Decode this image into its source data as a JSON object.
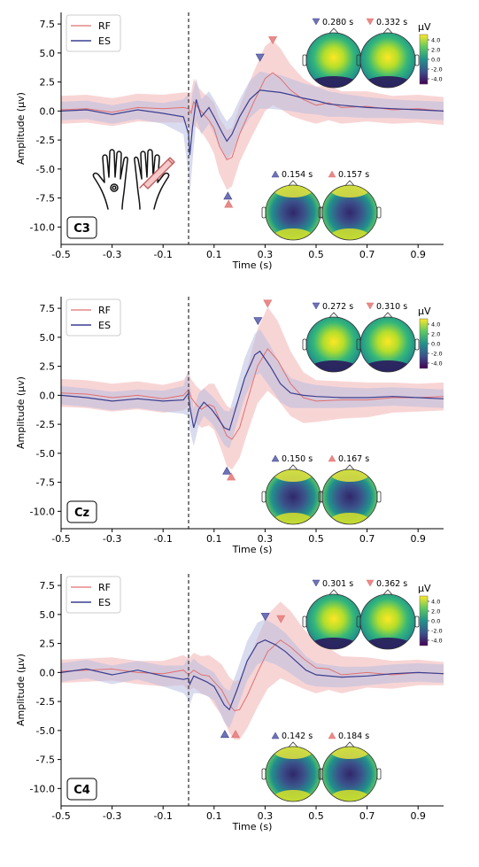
{
  "colors": {
    "rf": "#e07070",
    "es": "#3a3f8f",
    "rf_band": "#f2b3b3",
    "es_band": "#b9bde0",
    "onset_line": "#555555"
  },
  "legend_labels": {
    "rf": "RF",
    "es": "ES"
  },
  "colorbar": {
    "unit": "µV",
    "ticks": [
      "4.0",
      "2.0",
      "0.0",
      "-2.0",
      "-4.0"
    ],
    "colormap": "viridis"
  },
  "chart_data": [
    {
      "type": "line",
      "panel_label": "C3",
      "xlabel": "Time (s)",
      "ylabel": "Amplitude (µv)",
      "xlim": [
        -0.5,
        1.0
      ],
      "ylim": [
        -11.5,
        8.5
      ],
      "xticks": [
        -0.5,
        -0.3,
        -0.1,
        0.1,
        0.3,
        0.5,
        0.7,
        0.9
      ],
      "yticks": [
        7.5,
        5.0,
        2.5,
        0.0,
        -2.5,
        -5.0,
        -7.5,
        -10.0
      ],
      "onset_line_x": 0.0,
      "legend_position": "top-left",
      "series": [
        {
          "name": "RF",
          "color": "#e07070",
          "x": [
            -0.5,
            -0.4,
            -0.3,
            -0.2,
            -0.1,
            -0.02,
            0,
            0.01,
            0.02,
            0.04,
            0.06,
            0.08,
            0.1,
            0.12,
            0.15,
            0.17,
            0.2,
            0.25,
            0.3,
            0.33,
            0.36,
            0.4,
            0.45,
            0.5,
            0.55,
            0.6,
            0.7,
            0.8,
            0.9,
            1.0
          ],
          "values": [
            0.1,
            0.2,
            -0.1,
            0.3,
            0.2,
            0.3,
            0.2,
            -0.2,
            0.8,
            0.2,
            -0.3,
            -0.8,
            -1.5,
            -3.0,
            -4.2,
            -4.0,
            -2.0,
            0.5,
            2.8,
            3.3,
            2.8,
            1.8,
            1.0,
            0.5,
            0.7,
            0.3,
            0.4,
            0.1,
            0.2,
            0.0
          ],
          "band": [
            1.2,
            1.2,
            1.2,
            1.2,
            1.2,
            1.3,
            1.4,
            1.8,
            2.0,
            1.8,
            1.8,
            2.0,
            2.2,
            2.4,
            2.6,
            2.5,
            2.4,
            2.6,
            2.8,
            2.8,
            2.6,
            2.2,
            1.8,
            1.6,
            1.5,
            1.4,
            1.3,
            1.2,
            1.2,
            1.2
          ]
        },
        {
          "name": "ES",
          "color": "#3a3f8f",
          "x": [
            -0.5,
            -0.4,
            -0.3,
            -0.2,
            -0.1,
            -0.02,
            0,
            0.005,
            0.015,
            0.03,
            0.05,
            0.08,
            0.1,
            0.13,
            0.15,
            0.17,
            0.2,
            0.24,
            0.28,
            0.32,
            0.36,
            0.4,
            0.45,
            0.5,
            0.55,
            0.6,
            0.7,
            0.8,
            0.9,
            1.0
          ],
          "values": [
            0.0,
            0.1,
            -0.3,
            0.1,
            -0.2,
            -0.5,
            -2.0,
            -3.8,
            -1.5,
            1.0,
            -0.5,
            0.3,
            -0.5,
            -1.8,
            -2.6,
            -2.0,
            -0.5,
            1.0,
            1.8,
            1.7,
            1.6,
            1.4,
            1.1,
            0.9,
            0.6,
            0.5,
            0.3,
            0.2,
            0.1,
            0.0
          ],
          "band": [
            0.8,
            0.8,
            0.8,
            0.8,
            0.9,
            1.5,
            3.5,
            3.5,
            3.0,
            1.8,
            1.5,
            1.4,
            1.5,
            1.6,
            1.7,
            1.6,
            1.5,
            1.6,
            1.6,
            1.5,
            1.5,
            1.4,
            1.3,
            1.2,
            1.1,
            1.0,
            0.9,
            0.8,
            0.8,
            0.8
          ]
        }
      ],
      "peak_markers": [
        {
          "series": "ES",
          "x": 0.28,
          "y": 4.6,
          "direction": "down"
        },
        {
          "series": "RF",
          "x": 0.33,
          "y": 6.1,
          "direction": "down"
        },
        {
          "series": "ES",
          "x": 0.154,
          "y": -7.3,
          "direction": "up"
        },
        {
          "series": "RF",
          "x": 0.157,
          "y": -8.0,
          "direction": "up"
        }
      ],
      "topomaps": [
        {
          "label": "0.280 s",
          "series": "ES",
          "position": "upper",
          "marker": "down"
        },
        {
          "label": "0.332 s",
          "series": "RF",
          "position": "upper",
          "marker": "down"
        },
        {
          "label": "0.154 s",
          "series": "ES",
          "position": "lower",
          "marker": "up"
        },
        {
          "label": "0.157 s",
          "series": "RF",
          "position": "lower",
          "marker": "up"
        }
      ],
      "has_colorbar": true,
      "has_hand_illustration": true
    },
    {
      "type": "line",
      "panel_label": "Cz",
      "xlabel": "Time (s)",
      "ylabel": "Amplitude (µv)",
      "xlim": [
        -0.5,
        1.0
      ],
      "ylim": [
        -11.5,
        8.5
      ],
      "xticks": [
        -0.5,
        -0.3,
        -0.1,
        0.1,
        0.3,
        0.5,
        0.7,
        0.9
      ],
      "yticks": [
        7.5,
        5.0,
        2.5,
        0.0,
        -2.5,
        -5.0,
        -7.5,
        -10.0
      ],
      "onset_line_x": 0.0,
      "legend_position": "top-left",
      "series": [
        {
          "name": "RF",
          "color": "#e07070",
          "x": [
            -0.5,
            -0.4,
            -0.3,
            -0.2,
            -0.1,
            -0.02,
            0,
            0.01,
            0.03,
            0.05,
            0.08,
            0.1,
            0.13,
            0.15,
            0.17,
            0.2,
            0.23,
            0.27,
            0.31,
            0.35,
            0.4,
            0.45,
            0.5,
            0.6,
            0.7,
            0.8,
            0.9,
            1.0
          ],
          "values": [
            0.2,
            0.1,
            -0.2,
            0.0,
            -0.3,
            0.0,
            0.5,
            -0.2,
            -0.8,
            -1.2,
            -0.8,
            -1.0,
            -2.5,
            -3.5,
            -3.8,
            -2.8,
            -0.5,
            2.5,
            4.0,
            3.0,
            1.0,
            -0.2,
            -0.5,
            -0.4,
            -0.4,
            -0.2,
            -0.2,
            -0.1
          ],
          "band": [
            1.2,
            1.2,
            1.2,
            1.2,
            1.2,
            1.3,
            1.5,
            1.6,
            1.6,
            1.6,
            1.8,
            2.0,
            2.3,
            2.6,
            2.6,
            2.6,
            2.8,
            3.2,
            3.6,
            3.4,
            2.8,
            2.2,
            1.8,
            1.6,
            1.5,
            1.3,
            1.2,
            1.2
          ]
        },
        {
          "name": "ES",
          "color": "#3a3f8f",
          "x": [
            -0.5,
            -0.4,
            -0.3,
            -0.2,
            -0.1,
            -0.02,
            0,
            0.005,
            0.02,
            0.04,
            0.06,
            0.09,
            0.11,
            0.14,
            0.16,
            0.18,
            0.22,
            0.26,
            0.28,
            0.32,
            0.36,
            0.4,
            0.45,
            0.5,
            0.6,
            0.7,
            0.8,
            0.9,
            1.0
          ],
          "values": [
            0.0,
            -0.2,
            -0.5,
            -0.3,
            -0.5,
            -0.4,
            0.2,
            -1.0,
            -2.8,
            -1.2,
            -0.6,
            -1.2,
            -1.8,
            -2.8,
            -3.0,
            -1.5,
            1.5,
            3.5,
            3.8,
            2.5,
            1.0,
            0.2,
            0.0,
            -0.1,
            -0.2,
            -0.2,
            -0.1,
            -0.2,
            -0.3
          ],
          "band": [
            0.8,
            0.8,
            0.8,
            0.8,
            0.9,
            1.2,
            2.0,
            2.0,
            1.6,
            1.4,
            1.2,
            1.2,
            1.3,
            1.5,
            1.6,
            1.6,
            1.7,
            1.8,
            1.9,
            1.8,
            1.6,
            1.3,
            1.1,
            1.0,
            0.9,
            0.8,
            0.8,
            0.8,
            0.8
          ]
        }
      ],
      "peak_markers": [
        {
          "series": "ES",
          "x": 0.272,
          "y": 6.4,
          "direction": "down"
        },
        {
          "series": "RF",
          "x": 0.31,
          "y": 7.9,
          "direction": "down"
        },
        {
          "series": "ES",
          "x": 0.15,
          "y": -6.5,
          "direction": "up"
        },
        {
          "series": "RF",
          "x": 0.167,
          "y": -7.0,
          "direction": "up"
        }
      ],
      "topomaps": [
        {
          "label": "0.272 s",
          "series": "ES",
          "position": "upper",
          "marker": "down"
        },
        {
          "label": "0.310 s",
          "series": "RF",
          "position": "upper",
          "marker": "down"
        },
        {
          "label": "0.150 s",
          "series": "ES",
          "position": "lower",
          "marker": "up"
        },
        {
          "label": "0.167 s",
          "series": "RF",
          "position": "lower",
          "marker": "up"
        }
      ],
      "has_colorbar": true,
      "has_hand_illustration": false
    },
    {
      "type": "line",
      "panel_label": "C4",
      "xlabel": "Time (s)",
      "ylabel": "Amplitude (µv)",
      "xlim": [
        -0.5,
        1.0
      ],
      "ylim": [
        -11.5,
        8.5
      ],
      "xticks": [
        -0.5,
        -0.3,
        -0.1,
        0.1,
        0.3,
        0.5,
        0.7,
        0.9
      ],
      "yticks": [
        7.5,
        5.0,
        2.5,
        0.0,
        -2.5,
        -5.0,
        -7.5,
        -10.0
      ],
      "onset_line_x": 0.0,
      "legend_position": "top-left",
      "series": [
        {
          "name": "RF",
          "color": "#e07070",
          "x": [
            -0.5,
            -0.4,
            -0.3,
            -0.2,
            -0.1,
            -0.02,
            0,
            0.02,
            0.05,
            0.08,
            0.1,
            0.13,
            0.16,
            0.18,
            0.2,
            0.23,
            0.27,
            0.31,
            0.36,
            0.4,
            0.45,
            0.5,
            0.55,
            0.6,
            0.7,
            0.8,
            0.9,
            1.0
          ],
          "values": [
            0.1,
            0.2,
            0.3,
            0.0,
            -0.1,
            0.2,
            -0.2,
            0.2,
            -0.2,
            -0.3,
            -0.8,
            -1.5,
            -2.8,
            -3.3,
            -3.2,
            -2.0,
            0.0,
            1.8,
            2.8,
            2.2,
            1.2,
            0.4,
            0.3,
            -0.2,
            0.0,
            -0.2,
            0.0,
            -0.1
          ],
          "band": [
            1.0,
            1.0,
            1.0,
            1.0,
            1.1,
            1.3,
            1.4,
            1.5,
            1.6,
            1.8,
            2.0,
            2.2,
            2.4,
            2.5,
            2.6,
            2.8,
            3.0,
            3.2,
            3.3,
            3.1,
            2.6,
            2.2,
            1.8,
            1.6,
            1.3,
            1.2,
            1.1,
            1.0
          ]
        },
        {
          "name": "ES",
          "color": "#3a3f8f",
          "x": [
            -0.5,
            -0.4,
            -0.3,
            -0.2,
            -0.1,
            -0.02,
            0,
            0.005,
            0.02,
            0.04,
            0.07,
            0.1,
            0.12,
            0.14,
            0.16,
            0.19,
            0.23,
            0.27,
            0.3,
            0.34,
            0.38,
            0.42,
            0.46,
            0.5,
            0.6,
            0.7,
            0.8,
            0.9,
            1.0
          ],
          "values": [
            0.0,
            0.3,
            -0.2,
            0.2,
            -0.3,
            -0.6,
            -0.5,
            -1.0,
            -0.3,
            -0.5,
            -0.8,
            -1.2,
            -2.0,
            -2.8,
            -3.2,
            -1.5,
            1.0,
            2.5,
            2.8,
            2.4,
            1.8,
            1.0,
            0.2,
            -0.2,
            -0.4,
            -0.3,
            -0.1,
            0.0,
            -0.1
          ],
          "band": [
            0.8,
            0.8,
            0.8,
            0.8,
            0.9,
            1.2,
            1.8,
            1.8,
            1.5,
            1.3,
            1.2,
            1.2,
            1.3,
            1.5,
            1.6,
            1.6,
            1.7,
            1.8,
            1.8,
            1.7,
            1.6,
            1.4,
            1.2,
            1.0,
            0.9,
            0.8,
            0.8,
            0.8,
            0.8
          ]
        }
      ],
      "peak_markers": [
        {
          "series": "ES",
          "x": 0.301,
          "y": 4.8,
          "direction": "down"
        },
        {
          "series": "RF",
          "x": 0.362,
          "y": 4.6,
          "direction": "down"
        },
        {
          "series": "ES",
          "x": 0.142,
          "y": -5.3,
          "direction": "up"
        },
        {
          "series": "RF",
          "x": 0.184,
          "y": -5.3,
          "direction": "up"
        }
      ],
      "topomaps": [
        {
          "label": "0.301 s",
          "series": "ES",
          "position": "upper",
          "marker": "down"
        },
        {
          "label": "0.362 s",
          "series": "RF",
          "position": "upper",
          "marker": "down"
        },
        {
          "label": "0.142 s",
          "series": "ES",
          "position": "lower",
          "marker": "up"
        },
        {
          "label": "0.184 s",
          "series": "RF",
          "position": "lower",
          "marker": "up"
        }
      ],
      "has_colorbar": true,
      "has_hand_illustration": false
    }
  ]
}
